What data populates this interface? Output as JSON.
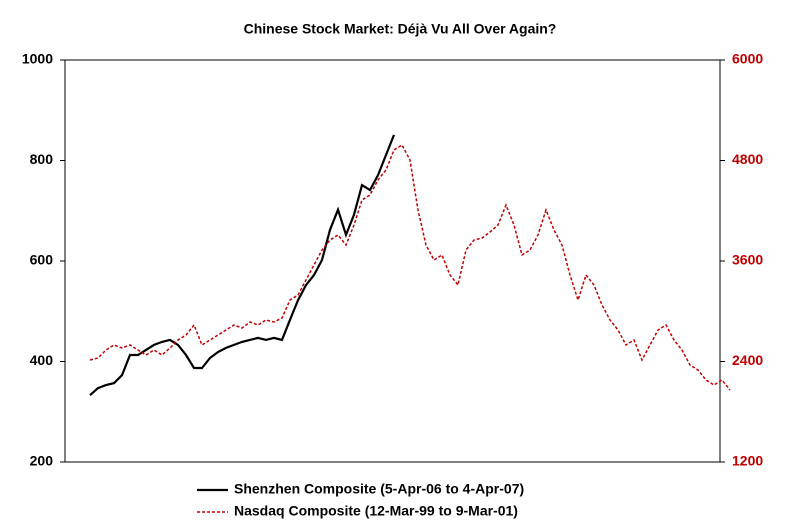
{
  "chart_data": {
    "type": "line",
    "title": "Chinese Stock Market: Déjà Vu All Over Again?",
    "ylim": [
      200,
      1000
    ],
    "yticks": [
      200,
      400,
      600,
      800,
      1000
    ],
    "y2lim": [
      1200,
      6000
    ],
    "y2ticks": [
      1200,
      2400,
      3600,
      4800,
      6000
    ],
    "y2_color": "#c00000",
    "series": [
      {
        "name": "Shenzhen Composite (5-Apr-06 to 4-Apr-07)",
        "color": "#000000",
        "axis": "y",
        "dashed": false,
        "values": [
          333,
          347,
          353,
          357,
          373,
          413,
          413,
          423,
          433,
          439,
          443,
          433,
          413,
          387,
          387,
          407,
          419,
          427,
          433,
          439,
          443,
          447,
          443,
          447,
          443,
          483,
          522,
          552,
          572,
          602,
          662,
          702,
          652,
          692,
          751,
          741,
          771,
          811,
          851
        ]
      },
      {
        "name": "Nasdaq Composite (12-Mar-99 to 9-Mar-01)",
        "color": "#c00000",
        "axis": "y2",
        "dashed": true,
        "values": [
          2418,
          2442,
          2537,
          2597,
          2561,
          2597,
          2537,
          2478,
          2537,
          2478,
          2561,
          2657,
          2716,
          2836,
          2597,
          2657,
          2716,
          2776,
          2836,
          2800,
          2872,
          2836,
          2896,
          2872,
          2919,
          3134,
          3194,
          3373,
          3552,
          3731,
          3851,
          3910,
          3791,
          4030,
          4328,
          4388,
          4567,
          4687,
          4925,
          4985,
          4806,
          4209,
          3791,
          3612,
          3672,
          3433,
          3313,
          3731,
          3851,
          3875,
          3946,
          4030,
          4269,
          4030,
          3672,
          3731,
          3910,
          4209,
          3970,
          3791,
          3433,
          3134,
          3433,
          3313,
          3075,
          2896,
          2776,
          2597,
          2657,
          2418,
          2597,
          2776,
          2836,
          2657,
          2537,
          2358,
          2299,
          2179,
          2119,
          2179,
          2060
        ]
      }
    ]
  }
}
